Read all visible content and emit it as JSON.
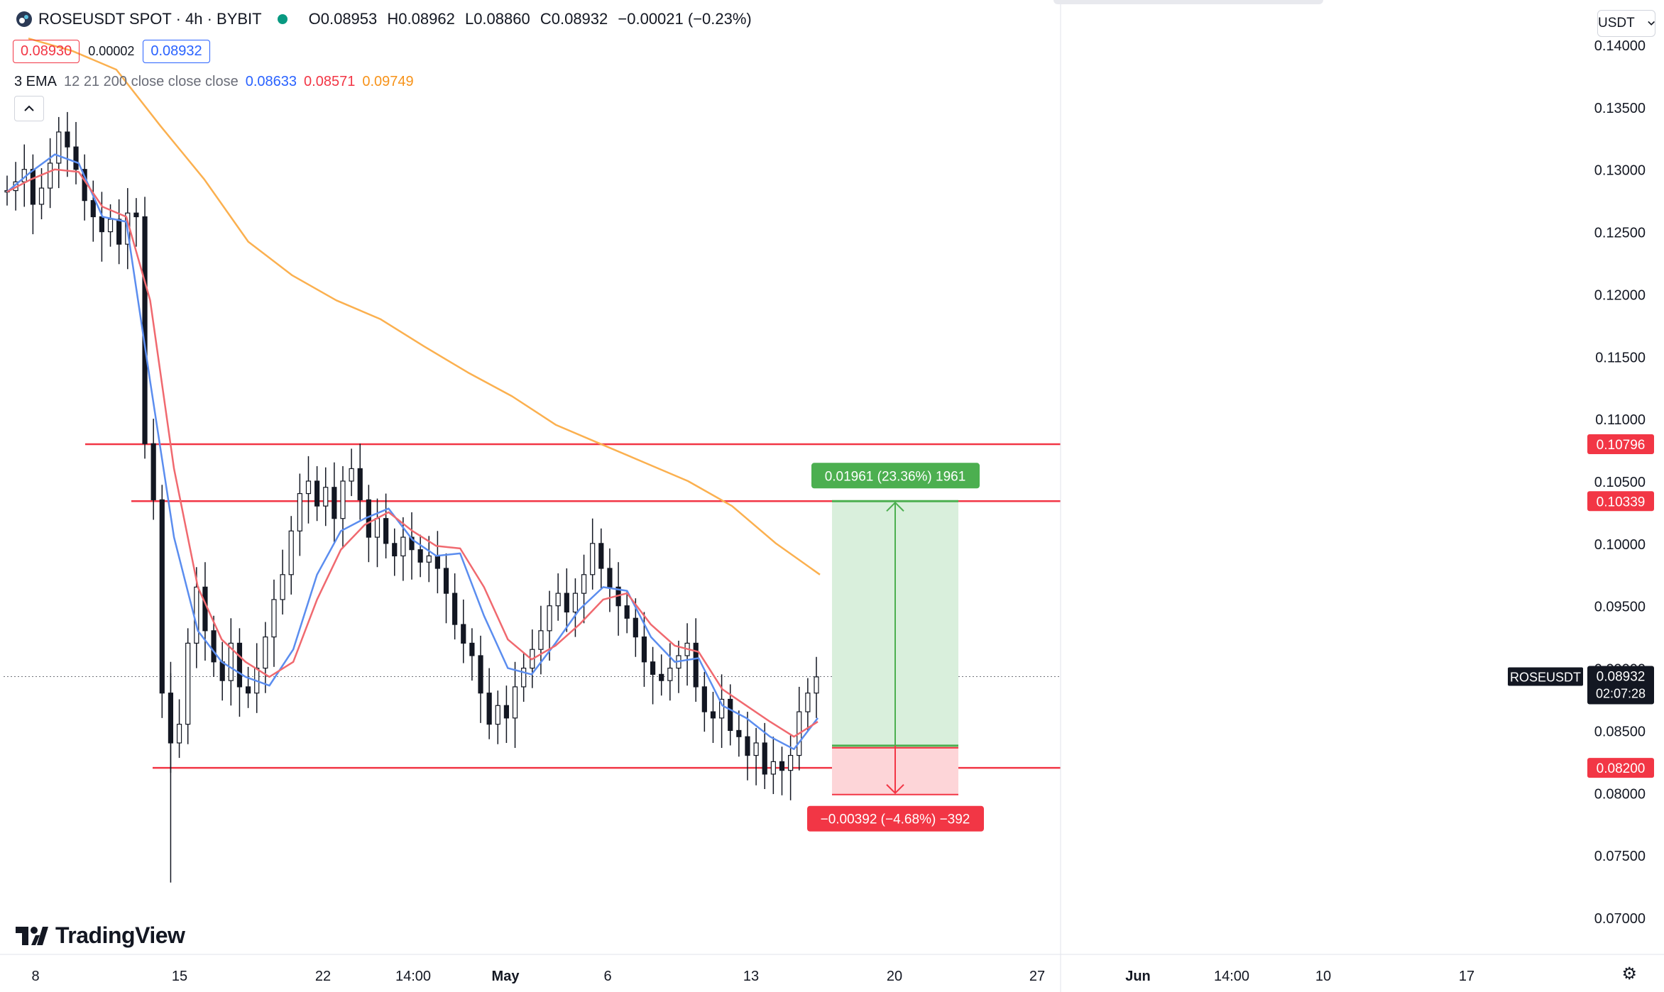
{
  "header": {
    "symbol": "ROSEUSDT SPOT · 4h · BYBIT",
    "ohlc": {
      "o_label": "O",
      "o": "0.08953",
      "h_label": "H",
      "h": "0.08962",
      "l_label": "L",
      "l": "0.08860",
      "c_label": "C",
      "c": "0.08932",
      "change": "−0.00021 (−0.23%)"
    },
    "sell_price": "0.08930",
    "spread": "0.00002",
    "buy_price": "0.08932"
  },
  "indicator": {
    "label": "3 EMA",
    "params": "12 21 200 close close close",
    "ema12": "0.08633",
    "ema21": "0.08571",
    "ema200": "0.09749"
  },
  "currency": "USDT",
  "brand": "TradingView",
  "colors": {
    "up": "#089981",
    "down": "#f23645",
    "ema12": "#5b8def",
    "ema21": "#f0696f",
    "ema200": "#fbb04f",
    "level_line": "#f23645",
    "profit_fill": "#d9efdc",
    "loss_fill": "#fdd5d8",
    "profit_label": "#4caf50",
    "loss_label": "#f23645"
  },
  "icons": [
    "tradingview-logo-icon",
    "settings-icon",
    "chevron-up-icon",
    "chevron-down-icon",
    "symbol-logo-icon"
  ],
  "chart_data": {
    "type": "candlestick",
    "timeframe": "4h",
    "y_ticks": [
      "0.14000",
      "0.13500",
      "0.13000",
      "0.12500",
      "0.12000",
      "0.11500",
      "0.11000",
      "0.10500",
      "0.10000",
      "0.09500",
      "0.09000",
      "0.08500",
      "0.08000",
      "0.07500",
      "0.07000"
    ],
    "ylim": [
      0.0675,
      0.1425
    ],
    "x_ticks": [
      "8",
      "15",
      "22",
      "14:00",
      "May",
      "6",
      "13",
      "20",
      "27",
      "Jun",
      "14:00",
      "10",
      "17"
    ],
    "current_price": {
      "symbol": "ROSEUSDT",
      "value": "0.08932",
      "countdown": "02:07:28"
    },
    "levels": [
      "0.10796",
      "0.10339",
      "0.08200"
    ],
    "position": {
      "entry": 0.08378,
      "target": "0.10339",
      "stop": 0.07986,
      "profit_label": "0.01961 (23.36%) 1961",
      "loss_label": "−0.00392 (−4.68%) −392"
    },
    "ema_series": [
      {
        "name": "EMA 12",
        "values": [
          0.1282,
          0.1298,
          0.1312,
          0.1305,
          0.1262,
          0.1258,
          0.113,
          0.1005,
          0.093,
          0.0905,
          0.0893,
          0.0886,
          0.0915,
          0.0975,
          0.101,
          0.102,
          0.1028,
          0.1003,
          0.099,
          0.0992,
          0.0942,
          0.09,
          0.0895,
          0.092,
          0.0947,
          0.0965,
          0.0962,
          0.0925,
          0.0905,
          0.0908,
          0.087,
          0.086,
          0.0845,
          0.0835,
          0.086
        ]
      },
      {
        "name": "EMA 21",
        "values": [
          0.1282,
          0.1292,
          0.13,
          0.1298,
          0.127,
          0.1262,
          0.1195,
          0.106,
          0.0965,
          0.0923,
          0.0905,
          0.0893,
          0.0905,
          0.0955,
          0.0995,
          0.1015,
          0.1025,
          0.101,
          0.0998,
          0.0996,
          0.0965,
          0.0923,
          0.0907,
          0.0918,
          0.0935,
          0.0955,
          0.096,
          0.0935,
          0.0918,
          0.0913,
          0.0883,
          0.087,
          0.0857,
          0.0845,
          0.0857
        ]
      },
      {
        "name": "EMA 200",
        "values": [
          0.1405,
          0.1395,
          0.138,
          0.1335,
          0.1292,
          0.1242,
          0.1215,
          0.1195,
          0.118,
          0.1158,
          0.1137,
          0.1118,
          0.1095,
          0.108,
          0.1065,
          0.105,
          0.103,
          0.1,
          0.0975
        ]
      }
    ],
    "candles_close": [
      0.1283,
      0.129,
      0.13,
      0.1272,
      0.1285,
      0.1305,
      0.133,
      0.1318,
      0.13,
      0.1275,
      0.1262,
      0.125,
      0.126,
      0.124,
      0.1265,
      0.1262,
      0.108,
      0.1035,
      0.088,
      0.084,
      0.0855,
      0.092,
      0.0965,
      0.093,
      0.0905,
      0.089,
      0.092,
      0.0885,
      0.088,
      0.09,
      0.0925,
      0.0955,
      0.0975,
      0.101,
      0.104,
      0.105,
      0.103,
      0.1045,
      0.102,
      0.105,
      0.106,
      0.1035,
      0.1005,
      0.102,
      0.1,
      0.099,
      0.1005,
      0.0995,
      0.0985,
      0.099,
      0.098,
      0.096,
      0.0935,
      0.092,
      0.091,
      0.088,
      0.0855,
      0.087,
      0.086,
      0.0885,
      0.09,
      0.0915,
      0.093,
      0.095,
      0.096,
      0.0945,
      0.096,
      0.0975,
      0.1,
      0.098,
      0.0965,
      0.095,
      0.094,
      0.0925,
      0.0905,
      0.0895,
      0.089,
      0.09,
      0.091,
      0.092,
      0.0885,
      0.0865,
      0.086,
      0.0875,
      0.085,
      0.0845,
      0.083,
      0.084,
      0.0815,
      0.0825,
      0.0818,
      0.083,
      0.0865,
      0.088,
      0.0893
    ]
  }
}
